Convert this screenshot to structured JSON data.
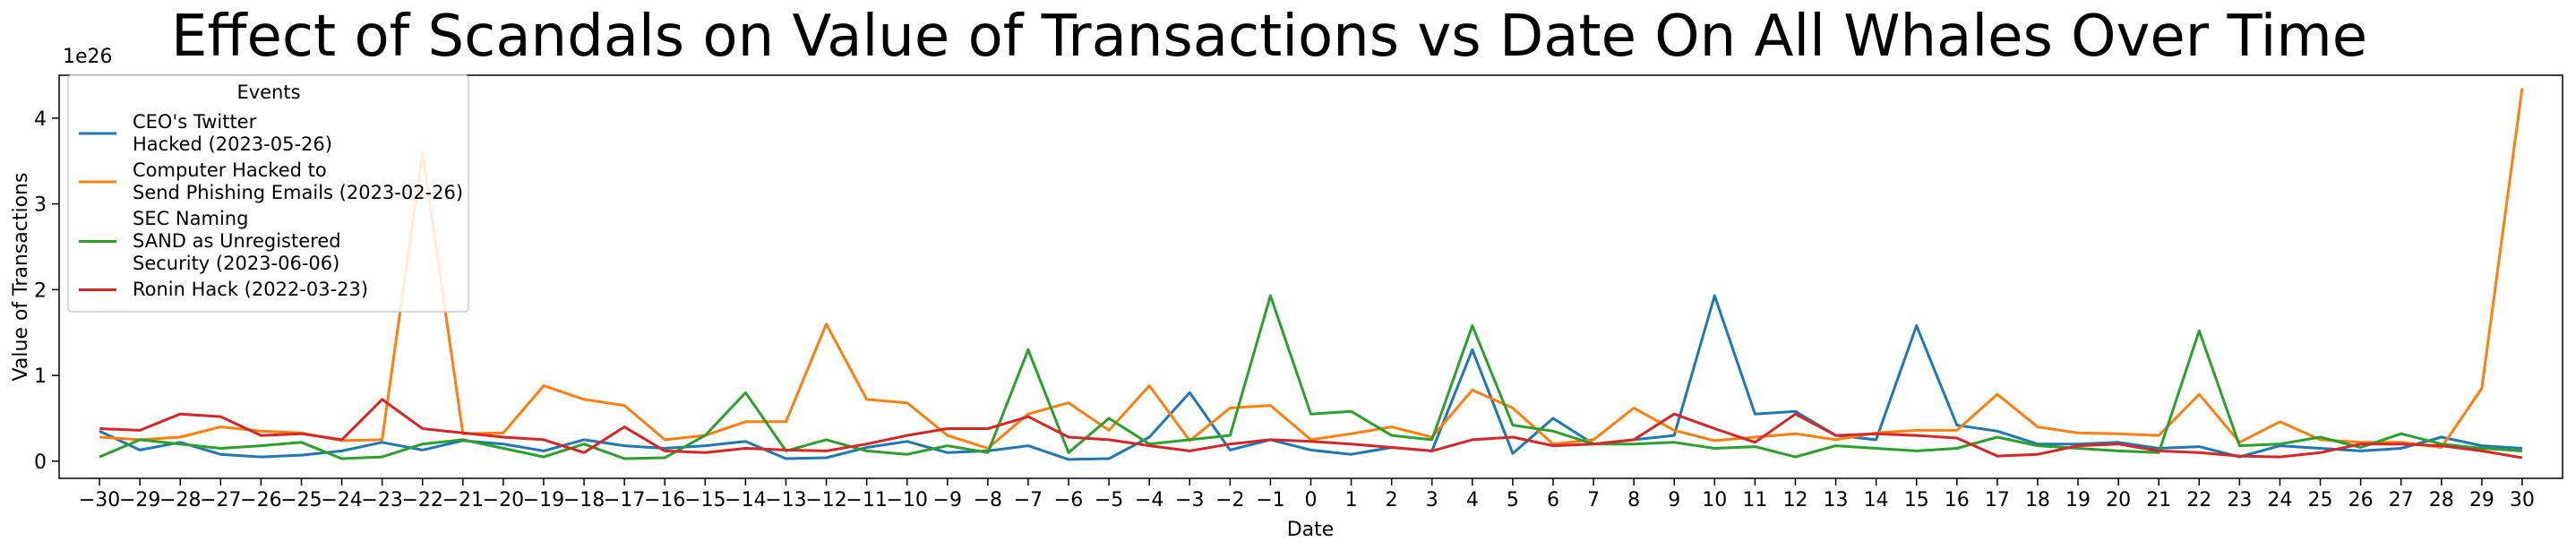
{
  "chart_data": {
    "type": "line",
    "title": "Effect of Scandals on Value of Transactions vs Date On All Whales Over Time",
    "xlabel": "Date",
    "ylabel": "Value of Transactions",
    "y_offset_label": "1e26",
    "xlim": [
      -31,
      31
    ],
    "ylim": [
      -0.2,
      4.5
    ],
    "y_scale_units": "1e26",
    "y_ticks": [
      0,
      1,
      2,
      3,
      4
    ],
    "grid": false,
    "legend": {
      "title": "Events",
      "placement": "top-left"
    },
    "x": [
      -30,
      -29,
      -28,
      -27,
      -26,
      -25,
      -24,
      -23,
      -22,
      -21,
      -20,
      -19,
      -18,
      -17,
      -16,
      -15,
      -14,
      -13,
      -12,
      -11,
      -10,
      -9,
      -8,
      -7,
      -6,
      -5,
      -4,
      -3,
      -2,
      -1,
      0,
      1,
      2,
      3,
      4,
      5,
      6,
      7,
      8,
      9,
      10,
      11,
      12,
      13,
      14,
      15,
      16,
      17,
      18,
      19,
      20,
      21,
      22,
      23,
      24,
      25,
      26,
      27,
      28,
      29,
      30
    ],
    "x_tick_labels": [
      "−30",
      "−29",
      "−28",
      "−27",
      "−26",
      "−25",
      "−24",
      "−23",
      "−22",
      "−21",
      "−20",
      "−19",
      "−18",
      "−17",
      "−16",
      "−15",
      "−14",
      "−13",
      "−12",
      "−11",
      "−10",
      "−9",
      "−8",
      "−7",
      "−6",
      "−5",
      "−4",
      "−3",
      "−2",
      "−1",
      "0",
      "1",
      "2",
      "3",
      "4",
      "5",
      "6",
      "7",
      "8",
      "9",
      "10",
      "11",
      "12",
      "13",
      "14",
      "15",
      "16",
      "17",
      "18",
      "19",
      "20",
      "21",
      "22",
      "23",
      "24",
      "25",
      "26",
      "27",
      "28",
      "29",
      "30"
    ],
    "series": [
      {
        "name": "CEO's Twitter\nHacked (2023-05-26)",
        "color": "#1f77b4",
        "values": [
          0.35,
          0.13,
          0.22,
          0.08,
          0.05,
          0.07,
          0.12,
          0.22,
          0.13,
          0.24,
          0.2,
          0.12,
          0.25,
          0.18,
          0.15,
          0.18,
          0.23,
          0.03,
          0.04,
          0.16,
          0.23,
          0.1,
          0.12,
          0.18,
          0.02,
          0.03,
          0.28,
          0.8,
          0.13,
          0.25,
          0.13,
          0.08,
          0.16,
          0.12,
          1.3,
          0.09,
          0.5,
          0.2,
          0.25,
          0.3,
          1.93,
          0.55,
          0.58,
          0.3,
          0.25,
          1.58,
          0.42,
          0.35,
          0.2,
          0.2,
          0.22,
          0.15,
          0.17,
          0.05,
          0.18,
          0.15,
          0.12,
          0.15,
          0.28,
          0.18,
          0.15
        ]
      },
      {
        "name": "Computer Hacked to\nSend Phishing Emails (2023-02-26)",
        "color": "#ff7f0e",
        "values": [
          0.28,
          0.25,
          0.28,
          0.4,
          0.35,
          0.33,
          0.24,
          0.25,
          3.6,
          0.32,
          0.33,
          0.88,
          0.72,
          0.65,
          0.25,
          0.3,
          0.46,
          0.46,
          1.6,
          0.72,
          0.68,
          0.3,
          0.15,
          0.55,
          0.68,
          0.36,
          0.88,
          0.24,
          0.62,
          0.65,
          0.25,
          0.32,
          0.4,
          0.28,
          0.83,
          0.62,
          0.2,
          0.25,
          0.62,
          0.36,
          0.24,
          0.28,
          0.32,
          0.25,
          0.33,
          0.36,
          0.36,
          0.78,
          0.4,
          0.33,
          0.32,
          0.3,
          0.78,
          0.22,
          0.46,
          0.25,
          0.22,
          0.22,
          0.16,
          0.85,
          4.35
        ]
      },
      {
        "name": "SEC Naming\nSAND as Unregistered\nSecurity (2023-06-06)",
        "color": "#2ca02c",
        "values": [
          0.05,
          0.25,
          0.2,
          0.15,
          0.18,
          0.22,
          0.03,
          0.05,
          0.2,
          0.25,
          0.15,
          0.05,
          0.2,
          0.03,
          0.04,
          0.3,
          0.8,
          0.12,
          0.25,
          0.12,
          0.08,
          0.18,
          0.1,
          1.3,
          0.1,
          0.5,
          0.2,
          0.25,
          0.3,
          1.93,
          0.55,
          0.58,
          0.3,
          0.25,
          1.58,
          0.42,
          0.35,
          0.2,
          0.2,
          0.22,
          0.15,
          0.17,
          0.05,
          0.18,
          0.15,
          0.12,
          0.15,
          0.28,
          0.18,
          0.15,
          0.12,
          0.1,
          1.52,
          0.18,
          0.2,
          0.28,
          0.16,
          0.32,
          0.2,
          0.15,
          0.12
        ]
      },
      {
        "name": "Ronin Hack (2022-03-23)",
        "color": "#d62728",
        "values": [
          0.38,
          0.36,
          0.55,
          0.52,
          0.3,
          0.32,
          0.25,
          0.72,
          0.38,
          0.33,
          0.28,
          0.25,
          0.1,
          0.4,
          0.12,
          0.1,
          0.15,
          0.13,
          0.12,
          0.2,
          0.3,
          0.38,
          0.38,
          0.52,
          0.28,
          0.25,
          0.18,
          0.12,
          0.2,
          0.25,
          0.23,
          0.2,
          0.16,
          0.12,
          0.25,
          0.28,
          0.18,
          0.2,
          0.25,
          0.55,
          0.38,
          0.22,
          0.55,
          0.3,
          0.32,
          0.3,
          0.27,
          0.06,
          0.08,
          0.18,
          0.2,
          0.12,
          0.1,
          0.06,
          0.05,
          0.1,
          0.2,
          0.2,
          0.18,
          0.12,
          0.04
        ]
      }
    ]
  }
}
